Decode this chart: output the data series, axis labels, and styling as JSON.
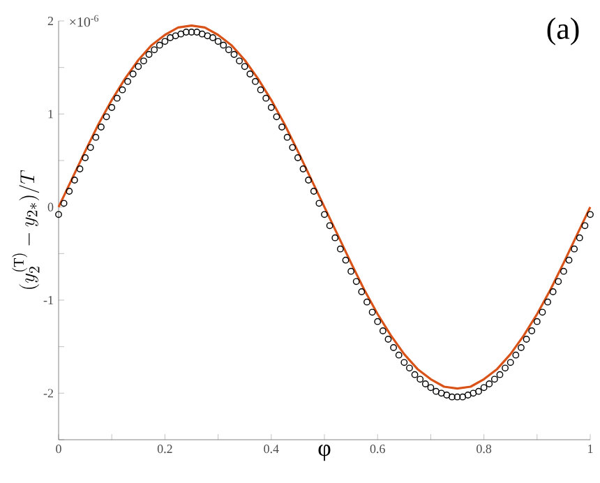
{
  "chart_data": {
    "type": "scatter",
    "xlabel": "φ",
    "ylabel": "(y_2^{(\\mathrm{T})} - y_{2*})/T",
    "annotations": [
      "(a)",
      "×10$^{-6}$"
    ],
    "xlim": [
      0,
      1
    ],
    "ylim": [
      -2.5,
      2
    ],
    "xticks": [
      0,
      {
        "value": 0.1,
        "label": null
      },
      0.2,
      {
        "value": 0.3,
        "label": null
      },
      0.4,
      {
        "value": 0.5,
        "label": null
      },
      0.6,
      {
        "value": 0.7,
        "label": null
      },
      0.8,
      {
        "value": 0.9,
        "label": null
      },
      1
    ],
    "yticks": [
      {
        "value": -2.5,
        "label": null
      },
      -2,
      {
        "value": -1.5,
        "label": null
      },
      -1,
      {
        "value": -0.5,
        "label": null
      },
      0,
      {
        "value": 0.5,
        "label": null
      },
      1,
      {
        "value": 1.5,
        "label": null
      },
      2
    ],
    "series": [
      {
        "color": "#000000",
        "marker": "circle",
        "x": [
          0,
          0.01,
          0.02,
          0.03,
          0.04,
          0.05,
          0.06,
          0.07,
          0.08,
          0.09,
          0.1,
          0.11,
          0.12,
          0.13,
          0.14,
          0.15,
          0.16,
          0.17,
          0.18,
          0.19,
          0.2,
          0.21,
          0.22,
          0.23,
          0.24,
          0.25,
          0.26,
          0.27,
          0.28,
          0.29,
          0.3,
          0.31,
          0.32,
          0.33,
          0.34,
          0.35,
          0.36,
          0.37,
          0.38,
          0.39,
          0.4,
          0.41,
          0.42,
          0.43,
          0.44,
          0.45,
          0.46,
          0.47,
          0.48,
          0.49,
          0.5,
          0.51,
          0.52,
          0.53,
          0.54,
          0.55,
          0.56,
          0.57,
          0.58,
          0.59,
          0.6,
          0.61,
          0.62,
          0.63,
          0.64,
          0.65,
          0.66,
          0.67,
          0.68,
          0.69,
          0.7,
          0.71,
          0.72,
          0.73,
          0.74,
          0.75,
          0.76,
          0.77,
          0.78,
          0.79,
          0.8,
          0.81,
          0.82,
          0.83,
          0.84,
          0.85,
          0.86,
          0.87,
          0.88,
          0.89,
          0.9,
          0.91,
          0.92,
          0.93,
          0.94,
          0.95,
          0.96,
          0.97,
          0.98,
          0.99,
          1
        ],
        "values": [
          -0.08,
          0.04,
          0.17,
          0.29,
          0.41,
          0.53,
          0.64,
          0.75,
          0.86,
          0.97,
          1.07,
          1.17,
          1.26,
          1.35,
          1.43,
          1.51,
          1.57,
          1.64,
          1.69,
          1.74,
          1.78,
          1.82,
          1.84,
          1.86,
          1.88,
          1.88,
          1.88,
          1.86,
          1.84,
          1.82,
          1.78,
          1.74,
          1.69,
          1.64,
          1.57,
          1.51,
          1.43,
          1.35,
          1.26,
          1.17,
          1.07,
          0.97,
          0.86,
          0.75,
          0.64,
          0.53,
          0.41,
          0.29,
          0.17,
          0.04,
          -0.08,
          -0.2,
          -0.33,
          -0.45,
          -0.57,
          -0.69,
          -0.8,
          -0.91,
          -1.02,
          -1.13,
          -1.23,
          -1.33,
          -1.42,
          -1.51,
          -1.59,
          -1.67,
          -1.73,
          -1.8,
          -1.85,
          -1.9,
          -1.94,
          -1.98,
          -2.0,
          -2.02,
          -2.04,
          -2.04,
          -2.04,
          -2.02,
          -2.0,
          -1.98,
          -1.94,
          -1.9,
          -1.85,
          -1.8,
          -1.73,
          -1.67,
          -1.59,
          -1.51,
          -1.42,
          -1.33,
          -1.23,
          -1.13,
          -1.02,
          -0.91,
          -0.8,
          -0.69,
          -0.57,
          -0.45,
          -0.33,
          -0.2,
          -0.08
        ]
      },
      {
        "type": "line",
        "color": "#d95319",
        "marker": "none",
        "x": [
          0,
          0.025,
          0.05,
          0.075,
          0.1,
          0.125,
          0.15,
          0.175,
          0.2,
          0.225,
          0.25,
          0.275,
          0.3,
          0.325,
          0.35,
          0.375,
          0.4,
          0.425,
          0.45,
          0.475,
          0.5,
          0.525,
          0.55,
          0.575,
          0.6,
          0.625,
          0.65,
          0.675,
          0.7,
          0.725,
          0.75,
          0.775,
          0.8,
          0.825,
          0.85,
          0.875,
          0.9,
          0.925,
          0.95,
          0.975,
          1
        ],
        "values": [
          0,
          0.3,
          0.6,
          0.89,
          1.15,
          1.38,
          1.58,
          1.74,
          1.85,
          1.93,
          1.95,
          1.93,
          1.85,
          1.74,
          1.58,
          1.38,
          1.15,
          0.89,
          0.6,
          0.3,
          0,
          -0.3,
          -0.6,
          -0.89,
          -1.15,
          -1.38,
          -1.58,
          -1.74,
          -1.85,
          -1.93,
          -1.95,
          -1.93,
          -1.85,
          -1.74,
          -1.58,
          -1.38,
          -1.15,
          -0.89,
          -0.6,
          -0.3,
          0
        ]
      }
    ]
  }
}
